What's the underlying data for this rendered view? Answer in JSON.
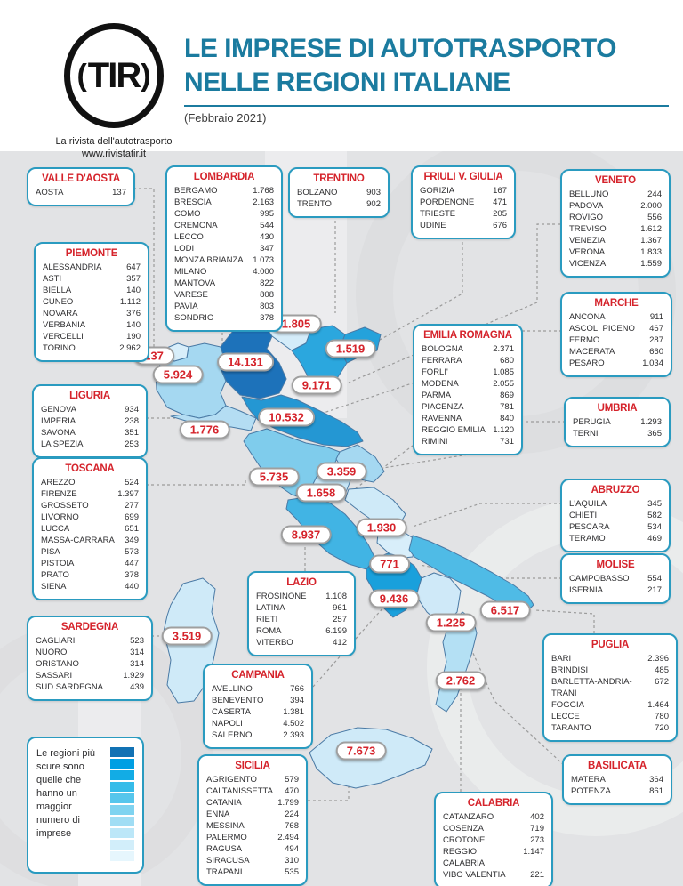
{
  "header": {
    "logo_text": "TIR",
    "logo_sub1": "La rivista dell'autotrasporto",
    "logo_sub2": "www.rivistatir.it",
    "title_line1": "LE IMPRESE DI AUTOTRASPORTO",
    "title_line2": "NELLE REGIONI ITALIANE",
    "subtitle": "(Febbraio 2021)"
  },
  "colors": {
    "accent_teal": "#2a9bc0",
    "title_teal": "#1b7b9f",
    "red": "#d5232b",
    "background_gray": "#e2e3e5",
    "map_border": "#4a7aa5"
  },
  "legend": {
    "text": "Le regioni più scure sono quelle che hanno un maggior numero di imprese",
    "swatches": [
      "#1272b4",
      "#009fe3",
      "#12ace5",
      "#35bce9",
      "#56c6ec",
      "#7fd3f0",
      "#a0ddf4",
      "#bce7f8",
      "#d2eefa",
      "#e6f6fd"
    ]
  },
  "regions": [
    {
      "id": "valle-daosta",
      "name": "VALLE D'AOSTA",
      "total": "137",
      "map_color": "#d8eefa",
      "provinces": [
        {
          "name": "AOSTA",
          "value": "137"
        }
      ]
    },
    {
      "id": "piemonte",
      "name": "PIEMONTE",
      "total": "5.924",
      "map_color": "#a5d8f1",
      "provinces": [
        {
          "name": "ALESSANDRIA",
          "value": "647"
        },
        {
          "name": "ASTI",
          "value": "357"
        },
        {
          "name": "BIELLA",
          "value": "140"
        },
        {
          "name": "CUNEO",
          "value": "1.112"
        },
        {
          "name": "NOVARA",
          "value": "376"
        },
        {
          "name": "VERBANIA",
          "value": "140"
        },
        {
          "name": "VERCELLI",
          "value": "190"
        },
        {
          "name": "TORINO",
          "value": "2.962"
        }
      ]
    },
    {
      "id": "lombardia",
      "name": "LOMBARDIA",
      "total": "14.131",
      "map_color": "#1d72ba",
      "provinces": [
        {
          "name": "BERGAMO",
          "value": "1.768"
        },
        {
          "name": "BRESCIA",
          "value": "2.163"
        },
        {
          "name": "COMO",
          "value": "995"
        },
        {
          "name": "CREMONA",
          "value": "544"
        },
        {
          "name": "LECCO",
          "value": "430"
        },
        {
          "name": "LODI",
          "value": "347"
        },
        {
          "name": "MONZA BRIANZA",
          "value": "1.073"
        },
        {
          "name": "MILANO",
          "value": "4.000"
        },
        {
          "name": "MANTOVA",
          "value": "822"
        },
        {
          "name": "VARESE",
          "value": "808"
        },
        {
          "name": "PAVIA",
          "value": "803"
        },
        {
          "name": "SONDRIO",
          "value": "378"
        }
      ]
    },
    {
      "id": "trentino",
      "name": "TRENTINO",
      "total": "1.805",
      "map_color": "#d4ecf9",
      "provinces": [
        {
          "name": "BOLZANO",
          "value": "903"
        },
        {
          "name": "TRENTO",
          "value": "902"
        }
      ]
    },
    {
      "id": "friuli",
      "name": "FRIULI V. GIULIA",
      "total": "1.519",
      "map_color": "#24a2db",
      "provinces": [
        {
          "name": "GORIZIA",
          "value": "167"
        },
        {
          "name": "PORDENONE",
          "value": "471"
        },
        {
          "name": "TRIESTE",
          "value": "205"
        },
        {
          "name": "UDINE",
          "value": "676"
        }
      ]
    },
    {
      "id": "veneto",
      "name": "VENETO",
      "total": "9.171",
      "map_color": "#2ba7de",
      "provinces": [
        {
          "name": "BELLUNO",
          "value": "244"
        },
        {
          "name": "PADOVA",
          "value": "2.000"
        },
        {
          "name": "ROVIGO",
          "value": "556"
        },
        {
          "name": "TREVISO",
          "value": "1.612"
        },
        {
          "name": "VENEZIA",
          "value": "1.367"
        },
        {
          "name": "VERONA",
          "value": "1.833"
        },
        {
          "name": "VICENZA",
          "value": "1.559"
        }
      ]
    },
    {
      "id": "liguria",
      "name": "LIGURIA",
      "total": "1.776",
      "map_color": "#b4ddf3",
      "provinces": [
        {
          "name": "GENOVA",
          "value": "934"
        },
        {
          "name": "IMPERIA",
          "value": "238"
        },
        {
          "name": "SAVONA",
          "value": "351"
        },
        {
          "name": "LA SPEZIA",
          "value": "253"
        }
      ]
    },
    {
      "id": "emilia",
      "name": "EMILIA ROMAGNA",
      "total": "10.532",
      "map_color": "#2497d3",
      "provinces": [
        {
          "name": "BOLOGNA",
          "value": "2.371"
        },
        {
          "name": "FERRARA",
          "value": "680"
        },
        {
          "name": "FORLI'",
          "value": "1.085"
        },
        {
          "name": "MODENA",
          "value": "2.055"
        },
        {
          "name": "PARMA",
          "value": "869"
        },
        {
          "name": "PIACENZA",
          "value": "781"
        },
        {
          "name": "RAVENNA",
          "value": "840"
        },
        {
          "name": "REGGIO EMILIA",
          "value": "1.120"
        },
        {
          "name": "RIMINI",
          "value": "731"
        }
      ]
    },
    {
      "id": "toscana",
      "name": "TOSCANA",
      "total": "5.735",
      "map_color": "#7fccec",
      "provinces": [
        {
          "name": "AREZZO",
          "value": "524"
        },
        {
          "name": "FIRENZE",
          "value": "1.397"
        },
        {
          "name": "GROSSETO",
          "value": "277"
        },
        {
          "name": "LIVORNO",
          "value": "699"
        },
        {
          "name": "LUCCA",
          "value": "651"
        },
        {
          "name": "MASSA-CARRARA",
          "value": "349"
        },
        {
          "name": "PISA",
          "value": "573"
        },
        {
          "name": "PISTOIA",
          "value": "447"
        },
        {
          "name": "PRATO",
          "value": "378"
        },
        {
          "name": "SIENA",
          "value": "440"
        }
      ]
    },
    {
      "id": "marche",
      "name": "MARCHE",
      "total": "3.359",
      "map_color": "#a5d8f1",
      "provinces": [
        {
          "name": "ANCONA",
          "value": "911"
        },
        {
          "name": "ASCOLI PICENO",
          "value": "467"
        },
        {
          "name": "FERMO",
          "value": "287"
        },
        {
          "name": "MACERATA",
          "value": "660"
        },
        {
          "name": "PESARO",
          "value": "1.034"
        }
      ]
    },
    {
      "id": "umbria",
      "name": "UMBRIA",
      "total": "1.658",
      "map_color": "#c6e6f7",
      "provinces": [
        {
          "name": "PERUGIA",
          "value": "1.293"
        },
        {
          "name": "TERNI",
          "value": "365"
        }
      ]
    },
    {
      "id": "lazio",
      "name": "LAZIO",
      "total": "8.937",
      "map_color": "#41b4e4",
      "provinces": [
        {
          "name": "FROSINONE",
          "value": "1.108"
        },
        {
          "name": "LATINA",
          "value": "961"
        },
        {
          "name": "RIETI",
          "value": "257"
        },
        {
          "name": "ROMA",
          "value": "6.199"
        },
        {
          "name": "VITERBO",
          "value": "412"
        }
      ]
    },
    {
      "id": "abruzzo",
      "name": "ABRUZZO",
      "total": "1.930",
      "map_color": "#cfeaf8",
      "provinces": [
        {
          "name": "L'AQUILA",
          "value": "345"
        },
        {
          "name": "CHIETI",
          "value": "582"
        },
        {
          "name": "PESCARA",
          "value": "534"
        },
        {
          "name": "TERAMO",
          "value": "469"
        }
      ]
    },
    {
      "id": "molise",
      "name": "MOLISE",
      "total": "771",
      "map_color": "#d8eefa",
      "provinces": [
        {
          "name": "CAMPOBASSO",
          "value": "554"
        },
        {
          "name": "ISERNIA",
          "value": "217"
        }
      ]
    },
    {
      "id": "campania",
      "name": "CAMPANIA",
      "total": "9.436",
      "map_color": "#19a0dc",
      "provinces": [
        {
          "name": "AVELLINO",
          "value": "766"
        },
        {
          "name": "BENEVENTO",
          "value": "394"
        },
        {
          "name": "CASERTA",
          "value": "1.381"
        },
        {
          "name": "NAPOLI",
          "value": "4.502"
        },
        {
          "name": "SALERNO",
          "value": "2.393"
        }
      ]
    },
    {
      "id": "puglia",
      "name": "PUGLIA",
      "total": "6.517",
      "map_color": "#4fbbe6",
      "provinces": [
        {
          "name": "BARI",
          "value": "2.396"
        },
        {
          "name": "BRINDISI",
          "value": "485"
        },
        {
          "name": "BARLETTA-ANDRIA-TRANI",
          "value": "672"
        },
        {
          "name": "FOGGIA",
          "value": "1.464"
        },
        {
          "name": "LECCE",
          "value": "780"
        },
        {
          "name": "TARANTO",
          "value": "720"
        }
      ]
    },
    {
      "id": "basilicata",
      "name": "BASILICATA",
      "total": "1.225",
      "map_color": "#cfe9f8",
      "provinces": [
        {
          "name": "MATERA",
          "value": "364"
        },
        {
          "name": "POTENZA",
          "value": "861"
        }
      ]
    },
    {
      "id": "calabria",
      "name": "CALABRIA",
      "total": "2.762",
      "map_color": "#b4e0f4",
      "provinces": [
        {
          "name": "CATANZARO",
          "value": "402"
        },
        {
          "name": "COSENZA",
          "value": "719"
        },
        {
          "name": "CROTONE",
          "value": "273"
        },
        {
          "name": "REGGIO CALABRIA",
          "value": "1.147"
        },
        {
          "name": "VIBO VALENTIA",
          "value": "221"
        }
      ]
    },
    {
      "id": "sicilia",
      "name": "SICILIA",
      "total": "7.673",
      "map_color": "#cfeaf8",
      "provinces": [
        {
          "name": "AGRIGENTO",
          "value": "579"
        },
        {
          "name": "CALTANISSETTA",
          "value": "470"
        },
        {
          "name": "CATANIA",
          "value": "1.799"
        },
        {
          "name": "ENNA",
          "value": "224"
        },
        {
          "name": "MESSINA",
          "value": "768"
        },
        {
          "name": "PALERMO",
          "value": "2.494"
        },
        {
          "name": "RAGUSA",
          "value": "494"
        },
        {
          "name": "SIRACUSA",
          "value": "310"
        },
        {
          "name": "TRAPANI",
          "value": "535"
        }
      ]
    },
    {
      "id": "sardegna",
      "name": "SARDEGNA",
      "total": "3.519",
      "map_color": "#cfeaf8",
      "provinces": [
        {
          "name": "CAGLIARI",
          "value": "523"
        },
        {
          "name": "NUORO",
          "value": "314"
        },
        {
          "name": "ORISTANO",
          "value": "314"
        },
        {
          "name": "SASSARI",
          "value": "1.929"
        },
        {
          "name": "SUD SARDEGNA",
          "value": "439"
        }
      ]
    }
  ]
}
